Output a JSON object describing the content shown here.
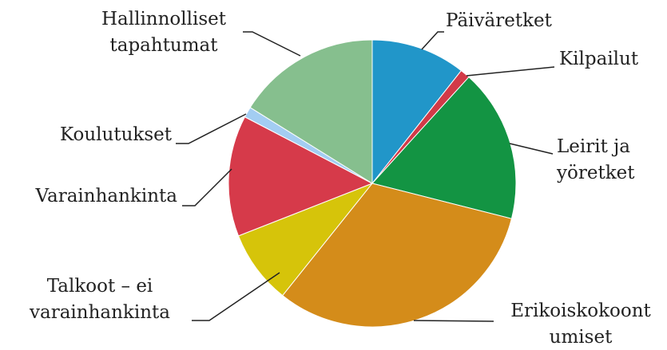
{
  "chart_data": {
    "type": "pie",
    "categories": [
      "Päiväretket",
      "Kilpailut",
      "Leirit ja yöretket",
      "Erikoiskokoontumiset",
      "Talkoot – ei varainhankinta",
      "Varainhankinta",
      "Koulutukset",
      "Hallinnolliset tapahtumat"
    ],
    "values": [
      10.6,
      1.1,
      17.2,
      31.7,
      8.3,
      13.6,
      1.2,
      16.1
    ],
    "colors": [
      "#2196c9",
      "#d23a48",
      "#139443",
      "#d48c1a",
      "#d6c40a",
      "#d63a4a",
      "#a3cdf2",
      "#86bf8e"
    ]
  }
}
